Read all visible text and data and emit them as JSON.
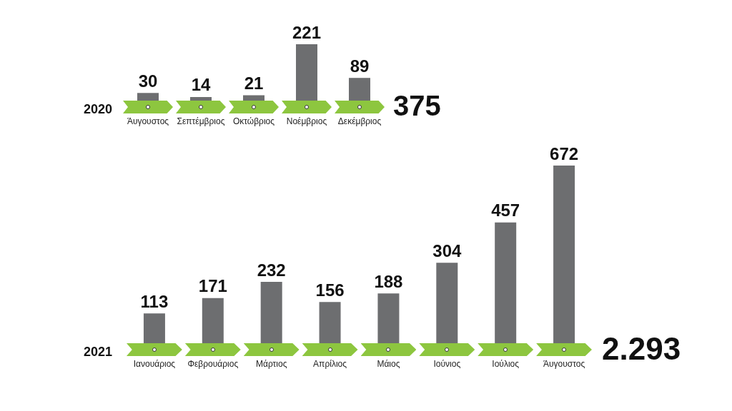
{
  "chart_data": [
    {
      "type": "bar",
      "title": "2020",
      "categories": [
        "Άυγουστος",
        "Σεπτέμβριος",
        "Οκτώβριος",
        "Νοέμβριος",
        "Δεκέμβριος"
      ],
      "values": [
        30,
        14,
        21,
        221,
        89
      ],
      "color": "#6d6e70",
      "data_labels": true,
      "annotations": [
        "375"
      ]
    },
    {
      "type": "bar",
      "title": "2021",
      "categories": [
        "Ιανουάριος",
        "Φεβρουάριος",
        "Μάρτιος",
        "Απρίλιος",
        "Μάιος",
        "Ιούνιος",
        "Ιούλιος",
        "Άυγουστος"
      ],
      "values": [
        113,
        171,
        232,
        156,
        188,
        304,
        457,
        672
      ],
      "color": "#6d6e70",
      "data_labels": true,
      "annotations": [
        "2.293"
      ]
    }
  ]
}
